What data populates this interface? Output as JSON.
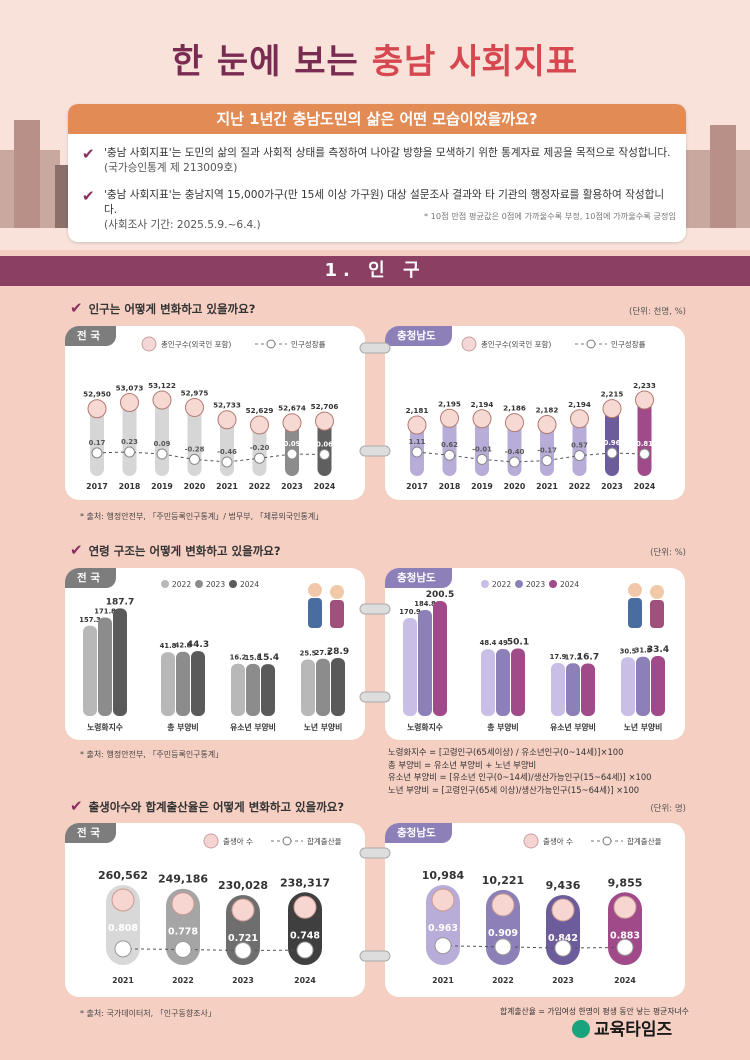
{
  "title": {
    "part1": "한 눈에 보는",
    "part2": "충남 사회지표"
  },
  "intro": {
    "heading": "지난 1년간 충남도민의 삶은 어떤 모습이었을까요?",
    "bullet1": "'충남 사회지표'는 도민의 삶의 질과 사회적 상태를 측정하여 나아갈 방향을 모색하기 위한 통계자료 제공을 목적으로 작성합니다.",
    "bullet1_sub": "(국가승인통계 제 213009호)",
    "bullet2": "'충남 사회지표'는 충남지역 15,000가구(만 15세 이상 가구원) 대상 설문조사 결과와 타 기관의 행정자료를 활용하여 작성합니다.",
    "bullet2_sub": "(사회조사 기간: 2025.5.9.~6.4.)",
    "footnote": "* 10점 만점 평균값은 0점에 가까울수록 부정, 10점에 가까울수록 긍정임"
  },
  "section": {
    "title": "1. 인    구"
  },
  "pop": {
    "question": "인구는 어떻게 변화하고 있을까요?",
    "unit": "(단위: 천명, %)",
    "source": "* 출처: 행정안전부, 「주민등록인구통계」/ 법무부, 「체류외국인통계」",
    "legend_bar": "총인구수(외국인 포함)",
    "legend_line": "인구성장률",
    "national_tag": "전 국",
    "cn_tag": "충청남도"
  },
  "age": {
    "question": "연령 구조는 어떻게 변화하고 있을까요?",
    "unit": "(단위: %)",
    "source": "* 출처: 행정안전부, 「주민등록인구통계」",
    "national_tag": "전 국",
    "cn_tag": "충청남도",
    "formula1": "노령화지수 = [고령인구(65세이상) / 유소년인구(0~14세)]×100",
    "formula2": "총 부양비 = 유소년 부양비 +  노년 부양비",
    "formula3": "유소년 부양비 = [유소년 인구(0~14세)/생산가능인구(15~64세)] ×100",
    "formula4": "노년 부양비 = [고령인구(65세 이상)/생산가능인구(15~64세)] ×100"
  },
  "birth": {
    "question": "출생아수와 합계출산율은 어떻게 변화하고 있을까요?",
    "unit": "(단위: 명)",
    "source": "* 출처: 국가데이터처, 「인구동향조사」",
    "legend_bar": "출생아 수",
    "legend_line": "합계출산율",
    "national_tag": "전 국",
    "cn_tag": "충청남도",
    "note": "합계출산율 = 가임여성 한명이 평생 동안 낳는 평균자녀수"
  },
  "logo": "교육타임즈",
  "colors": {
    "plum": "#8a3f63",
    "orange": "#e38b55",
    "lavender": "#b8acd8",
    "purple": "#6d5c9c",
    "magenta": "#a04a8a"
  },
  "chart_data": [
    {
      "type": "bar",
      "id": "pop-national",
      "categories": [
        "2017",
        "2018",
        "2019",
        "2020",
        "2021",
        "2022",
        "2023",
        "2024"
      ],
      "series": [
        {
          "name": "총인구수(외국인 포함)",
          "values": [
            52950,
            53073,
            53122,
            52975,
            52733,
            52629,
            52674,
            52706
          ],
          "labels": [
            "52,950",
            "53,073",
            "53,122",
            "52,975",
            "52,733",
            "52,629",
            "52,674",
            "52,706"
          ]
        },
        {
          "name": "인구성장률",
          "values": [
            0.17,
            0.23,
            0.09,
            -0.28,
            -0.46,
            -0.2,
            0.09,
            0.06
          ],
          "labels": [
            "0.17",
            "0.23",
            "0.09",
            "-0.28",
            "-0.46",
            "-0.20",
            "0.09",
            "0.06"
          ]
        }
      ]
    },
    {
      "type": "bar",
      "id": "pop-cn",
      "categories": [
        "2017",
        "2018",
        "2019",
        "2020",
        "2021",
        "2022",
        "2023",
        "2024"
      ],
      "series": [
        {
          "name": "총인구수(외국인 포함)",
          "values": [
            2181,
            2195,
            2194,
            2186,
            2182,
            2194,
            2215,
            2233
          ],
          "labels": [
            "2,181",
            "2,195",
            "2,194",
            "2,186",
            "2,182",
            "2,194",
            "2,215",
            "2,233"
          ]
        },
        {
          "name": "인구성장률",
          "values": [
            1.11,
            0.62,
            -0.01,
            -0.4,
            -0.17,
            0.57,
            0.96,
            0.81
          ],
          "labels": [
            "1.11",
            "0.62",
            "-0.01",
            "-0.40",
            "-0.17",
            "0.57",
            "0.96",
            "0.81"
          ]
        }
      ]
    },
    {
      "type": "bar",
      "id": "age-national",
      "categories": [
        "노령화지수",
        "총 부양비",
        "유소년 부양비",
        "노년 부양비"
      ],
      "series": [
        {
          "name": "2022",
          "values": [
            157.3,
            41.8,
            16.2,
            25.5
          ]
        },
        {
          "name": "2023",
          "values": [
            171.8,
            42.8,
            15.8,
            27.1
          ]
        },
        {
          "name": "2024",
          "values": [
            187.7,
            44.3,
            15.4,
            28.9
          ]
        }
      ]
    },
    {
      "type": "bar",
      "id": "age-cn",
      "categories": [
        "노령화지수",
        "총 부양비",
        "유소년 부양비",
        "노년 부양비"
      ],
      "series": [
        {
          "name": "2022",
          "values": [
            170.9,
            48.4,
            17.9,
            30.5
          ]
        },
        {
          "name": "2023",
          "values": [
            184.8,
            49.0,
            17.2,
            31.8
          ]
        },
        {
          "name": "2024",
          "values": [
            200.5,
            50.1,
            16.7,
            33.4
          ]
        }
      ]
    },
    {
      "type": "bar",
      "id": "birth-national",
      "categories": [
        "2021",
        "2022",
        "2023",
        "2024"
      ],
      "series": [
        {
          "name": "출생아 수",
          "values": [
            260562,
            249186,
            230028,
            238317
          ],
          "labels": [
            "260,562",
            "249,186",
            "230,028",
            "238,317"
          ]
        },
        {
          "name": "합계출산율",
          "values": [
            0.808,
            0.778,
            0.721,
            0.748
          ],
          "labels": [
            "0.808",
            "0.778",
            "0.721",
            "0.748"
          ]
        }
      ]
    },
    {
      "type": "bar",
      "id": "birth-cn",
      "categories": [
        "2021",
        "2022",
        "2023",
        "2024"
      ],
      "series": [
        {
          "name": "출생아 수",
          "values": [
            10984,
            10221,
            9436,
            9855
          ],
          "labels": [
            "10,984",
            "10,221",
            "9,436",
            "9,855"
          ]
        },
        {
          "name": "합계출산율",
          "values": [
            0.963,
            0.909,
            0.842,
            0.883
          ],
          "labels": [
            "0.963",
            "0.909",
            "0.842",
            "0.883"
          ]
        }
      ]
    }
  ]
}
